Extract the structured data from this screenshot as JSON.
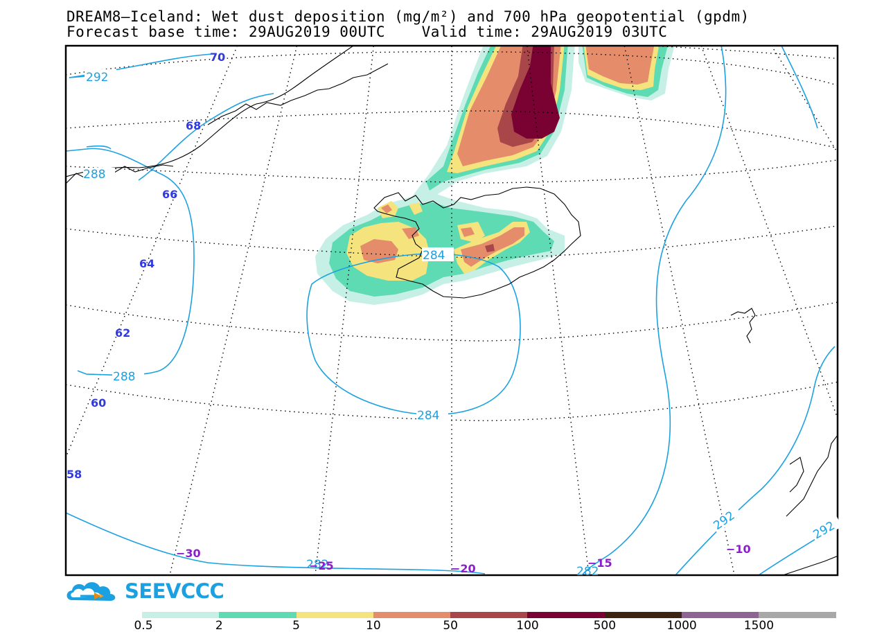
{
  "header": {
    "title_line1": "DREAM8—Iceland: Wet dust deposition (mg/m²) and 700 hPa geopotential (gpdm)",
    "title_line2": "Forecast base time: 29AUG2019 00UTC    Valid time: 29AUG2019 03UTC"
  },
  "logo": {
    "text": "SEEVCCC",
    "icon": "cloud-logo-icon"
  },
  "colors": {
    "contour": "#1ba1e2",
    "lat_label": "#2f3be0",
    "lon_label": "#8a1fc9",
    "coast": "#000000"
  },
  "latitude_labels": [
    "70",
    "68",
    "66",
    "64",
    "62",
    "60",
    "58"
  ],
  "longitude_labels": [
    "−30",
    "−25",
    "−20",
    "−15",
    "−10"
  ],
  "contour_labels": [
    "292",
    "288",
    "288",
    "284",
    "284",
    "282",
    "282",
    "292",
    "292"
  ],
  "colorbar": {
    "bins": [
      {
        "color": "#c6f0e6"
      },
      {
        "color": "#5fdbb4"
      },
      {
        "color": "#f5e47e"
      },
      {
        "color": "#e58d6a"
      },
      {
        "color": "#a8464a"
      },
      {
        "color": "#7a0233"
      },
      {
        "color": "#3d2412"
      },
      {
        "color": "#8e6493"
      },
      {
        "color": "#a8a8a8"
      }
    ],
    "labels": [
      "0.5",
      "2",
      "5",
      "10",
      "50",
      "100",
      "500",
      "1000",
      "1500"
    ]
  }
}
